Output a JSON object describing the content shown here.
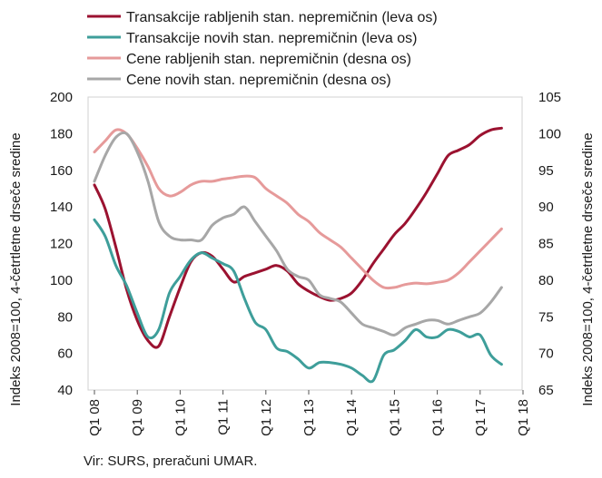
{
  "chart_data": {
    "type": "line",
    "legend_position": "top",
    "left_axis": {
      "label": "Indeks 2008=100, 4-četrtletne drseče sredine",
      "ylim": [
        40,
        200
      ],
      "ticks": [
        40,
        60,
        80,
        100,
        120,
        140,
        160,
        180,
        200
      ]
    },
    "right_axis": {
      "label": "Indeks 2008=100, 4-četrtletne drseče sredine",
      "ylim": [
        65,
        105
      ],
      "ticks": [
        65,
        70,
        75,
        80,
        85,
        90,
        95,
        100,
        105
      ]
    },
    "x_ticks": [
      "Q1 08",
      "Q1 09",
      "Q1 10",
      "Q1 11",
      "Q1 12",
      "Q1 13",
      "Q1 14",
      "Q1 15",
      "Q1 16",
      "Q1 17",
      "Q1 18"
    ],
    "series": [
      {
        "name": "Transakcije rabljenih stan. nepremičnin (leva os)",
        "axis": "left",
        "color": "#9b1230",
        "values": [
          152,
          139,
          118,
          95,
          78,
          67,
          64,
          80,
          96,
          110,
          115,
          113,
          106,
          99,
          102,
          104,
          106,
          108,
          105,
          98,
          94,
          91,
          89,
          90,
          93,
          100,
          109,
          117,
          125,
          131,
          139,
          148,
          158,
          168,
          171,
          174,
          179,
          182,
          183
        ]
      },
      {
        "name": "Transakcije novih stan. nepremičnin (leva os)",
        "axis": "left",
        "color": "#3e9e9a",
        "values": [
          133,
          124,
          108,
          97,
          82,
          69,
          73,
          93,
          102,
          111,
          115,
          112,
          109,
          105,
          90,
          77,
          73,
          63,
          61,
          57,
          52,
          55,
          55,
          54,
          52,
          48,
          45,
          59,
          62,
          67,
          73,
          69,
          69,
          73,
          72,
          69,
          70,
          59,
          54
        ]
      },
      {
        "name": "Cene rabljenih stan. nepremičnin (desna os)",
        "axis": "right",
        "color": "#e69a9a",
        "values": [
          97.5,
          99.0,
          100.5,
          100.0,
          98.0,
          95.5,
          92.5,
          91.5,
          92.0,
          93.0,
          93.5,
          93.5,
          93.8,
          94.0,
          94.2,
          94.0,
          92.5,
          91.5,
          90.5,
          89.0,
          88.0,
          86.5,
          85.5,
          84.5,
          83.0,
          81.5,
          80.0,
          79.0,
          79.0,
          79.4,
          79.6,
          79.5,
          79.7,
          80.0,
          81.0,
          82.5,
          84.0,
          85.5,
          87.0
        ]
      },
      {
        "name": "Cene novih stan. nepremičnin (desna os)",
        "axis": "right",
        "color": "#a7a7a7",
        "values": [
          93.5,
          97.0,
          99.5,
          100.0,
          97.5,
          93.5,
          88.0,
          86.0,
          85.5,
          85.5,
          85.5,
          87.5,
          88.5,
          89.0,
          90.0,
          88.0,
          86.0,
          84.0,
          81.5,
          80.5,
          80.0,
          78.0,
          77.5,
          77.0,
          75.5,
          74.0,
          73.5,
          73.0,
          72.5,
          73.5,
          74.0,
          74.5,
          74.5,
          74.0,
          74.5,
          75.0,
          75.5,
          77.0,
          79.0
        ]
      }
    ],
    "source": "Vir: SURS, preračuni UMAR."
  }
}
